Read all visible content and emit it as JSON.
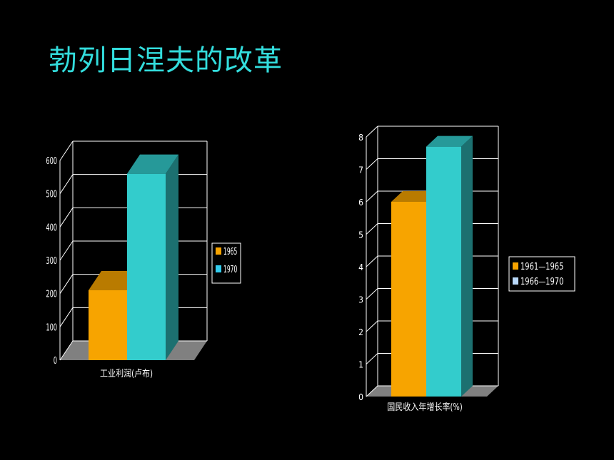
{
  "slide": {
    "title": "勃列日涅夫的改革"
  },
  "chart_data": [
    {
      "type": "bar",
      "xlabel": "工业利润(卢布)",
      "ylim": [
        0,
        600
      ],
      "yticks": [
        "0",
        "100",
        "200",
        "300",
        "400",
        "500",
        "600"
      ],
      "legend_position": "right",
      "series": [
        {
          "name": "1965",
          "values": [
            210
          ],
          "color": "#f7a400"
        },
        {
          "name": "1970",
          "values": [
            560
          ],
          "color": "#33cccc"
        }
      ]
    },
    {
      "type": "bar",
      "xlabel": "国民收入年增长率(%)",
      "ylim": [
        0,
        8
      ],
      "yticks": [
        "0",
        "1",
        "2",
        "3",
        "4",
        "5",
        "6",
        "7",
        "8"
      ],
      "legend_position": "right",
      "series": [
        {
          "name": "1961—1965",
          "values": [
            6.0
          ],
          "color": "#f7a400"
        },
        {
          "name": "1966—1970",
          "values": [
            7.7
          ],
          "color": "#33cccc"
        }
      ]
    }
  ]
}
